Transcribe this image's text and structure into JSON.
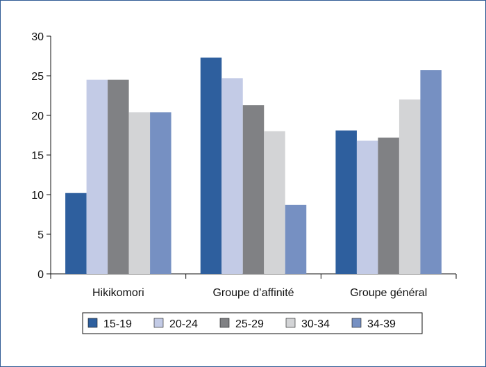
{
  "chart_data": {
    "type": "bar",
    "title": "",
    "xlabel": "",
    "ylabel": "",
    "ylim": [
      0,
      30
    ],
    "yticks": [
      0,
      5,
      10,
      15,
      20,
      25,
      30
    ],
    "grid": false,
    "legend_position": "bottom",
    "categories": [
      "Hikikomori",
      "Groupe d’affinité",
      "Groupe général"
    ],
    "series": [
      {
        "name": "15-19",
        "color": "#2e5f9e",
        "values": [
          10.2,
          27.3,
          18.1
        ]
      },
      {
        "name": "20-24",
        "color": "#c3cbe6",
        "values": [
          24.5,
          24.7,
          16.8
        ]
      },
      {
        "name": "25-29",
        "color": "#808184",
        "values": [
          24.5,
          21.3,
          17.2
        ]
      },
      {
        "name": "30-34",
        "color": "#d3d4d6",
        "values": [
          20.4,
          18.0,
          22.0
        ]
      },
      {
        "name": "34-39",
        "color": "#7690c2",
        "values": [
          20.4,
          8.7,
          25.7
        ]
      }
    ]
  }
}
